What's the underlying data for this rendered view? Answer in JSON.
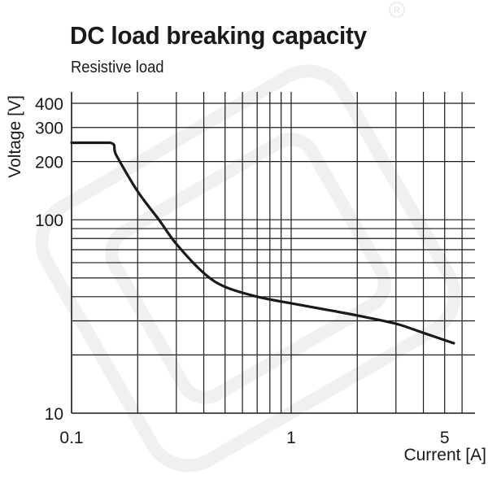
{
  "chart_data": {
    "type": "line",
    "title": "DC load breaking capacity",
    "subtitle": "Resistive load",
    "xlabel": "Current [A]",
    "ylabel": "Voltage [V]",
    "x_scale": "log",
    "y_scale": "log",
    "xlim": [
      0.1,
      7
    ],
    "ylim": [
      10,
      450
    ],
    "x_ticks": [
      {
        "value": 0.1,
        "label": "0.1"
      },
      {
        "value": 1,
        "label": "1"
      },
      {
        "value": 5,
        "label": "5"
      }
    ],
    "y_ticks": [
      {
        "value": 10,
        "label": "10"
      },
      {
        "value": 100,
        "label": "100"
      },
      {
        "value": 200,
        "label": "200"
      },
      {
        "value": 300,
        "label": "300"
      },
      {
        "value": 400,
        "label": "400"
      }
    ],
    "x_grid": [
      0.2,
      0.3,
      0.4,
      0.5,
      0.6,
      0.7,
      0.8,
      0.9,
      1,
      2,
      3,
      4,
      5,
      6,
      7
    ],
    "y_grid": [
      20,
      30,
      40,
      50,
      60,
      70,
      80,
      90,
      100,
      200,
      300,
      400
    ],
    "grid": true,
    "series": [
      {
        "name": "",
        "color": "#1a1a1a",
        "x": [
          0.1,
          0.15,
          0.16,
          0.2,
          0.25,
          0.3,
          0.4,
          0.5,
          0.7,
          1,
          1.5,
          2,
          3,
          4,
          5.5
        ],
        "y": [
          250,
          250,
          215,
          140,
          100,
          75,
          53,
          45,
          40,
          37,
          34,
          32,
          29,
          26,
          23
        ]
      }
    ]
  }
}
